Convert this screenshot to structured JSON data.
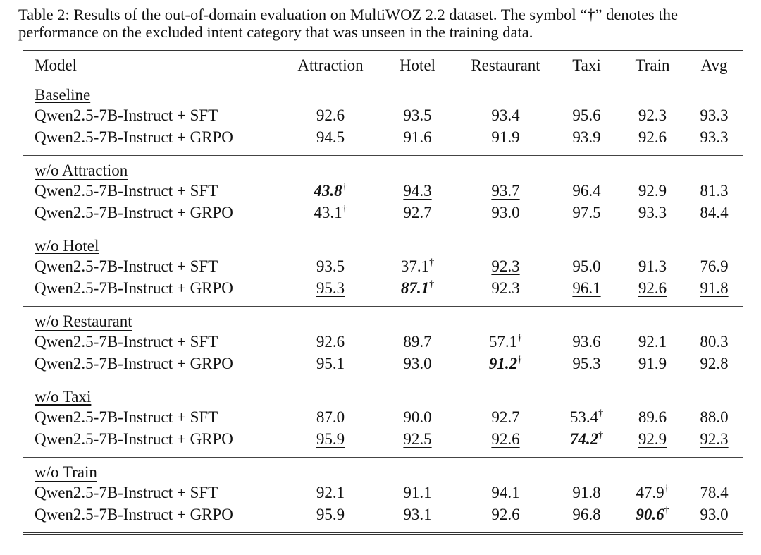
{
  "caption": "Table 2: Results of the out-of-domain evaluation on MultiWOZ 2.2 dataset. The symbol “†” denotes the performance on the excluded intent category that was unseen in the training data.",
  "headers": [
    "Model",
    "Attraction",
    "Hotel",
    "Restaurant",
    "Taxi",
    "Train",
    "Avg"
  ],
  "groups": [
    {
      "label": "Baseline",
      "rows": [
        {
          "model": "Qwen2.5-7B-Instruct + SFT",
          "cells": [
            {
              "v": "92.6"
            },
            {
              "v": "93.5"
            },
            {
              "v": "93.4"
            },
            {
              "v": "95.6"
            },
            {
              "v": "92.3"
            },
            {
              "v": "93.3"
            }
          ]
        },
        {
          "model": "Qwen2.5-7B-Instruct + GRPO",
          "cells": [
            {
              "v": "94.5"
            },
            {
              "v": "91.6"
            },
            {
              "v": "91.9"
            },
            {
              "v": "93.9"
            },
            {
              "v": "92.6"
            },
            {
              "v": "93.3"
            }
          ]
        }
      ]
    },
    {
      "label": "w/o Attraction",
      "rows": [
        {
          "model": "Qwen2.5-7B-Instruct + SFT",
          "cells": [
            {
              "v": "43.8",
              "b": true,
              "d": true
            },
            {
              "v": "94.3",
              "u": true
            },
            {
              "v": "93.7",
              "u": true
            },
            {
              "v": "96.4"
            },
            {
              "v": "92.9"
            },
            {
              "v": "81.3"
            }
          ]
        },
        {
          "model": "Qwen2.5-7B-Instruct + GRPO",
          "cells": [
            {
              "v": "43.1",
              "d": true
            },
            {
              "v": "92.7"
            },
            {
              "v": "93.0"
            },
            {
              "v": "97.5",
              "u": true
            },
            {
              "v": "93.3",
              "u": true
            },
            {
              "v": "84.4",
              "u": true
            }
          ]
        }
      ]
    },
    {
      "label": "w/o Hotel",
      "rows": [
        {
          "model": "Qwen2.5-7B-Instruct + SFT",
          "cells": [
            {
              "v": "93.5"
            },
            {
              "v": "37.1",
              "d": true
            },
            {
              "v": "92.3",
              "u": true
            },
            {
              "v": "95.0"
            },
            {
              "v": "91.3"
            },
            {
              "v": "76.9"
            }
          ]
        },
        {
          "model": "Qwen2.5-7B-Instruct + GRPO",
          "cells": [
            {
              "v": "95.3",
              "u": true
            },
            {
              "v": "87.1",
              "b": true,
              "d": true
            },
            {
              "v": "92.3"
            },
            {
              "v": "96.1",
              "u": true
            },
            {
              "v": "92.6",
              "u": true
            },
            {
              "v": "91.8",
              "u": true
            }
          ]
        }
      ]
    },
    {
      "label": "w/o Restaurant",
      "rows": [
        {
          "model": "Qwen2.5-7B-Instruct + SFT",
          "cells": [
            {
              "v": "92.6"
            },
            {
              "v": "89.7"
            },
            {
              "v": "57.1",
              "d": true
            },
            {
              "v": "93.6"
            },
            {
              "v": "92.1",
              "u": true
            },
            {
              "v": "80.3"
            }
          ]
        },
        {
          "model": "Qwen2.5-7B-Instruct + GRPO",
          "cells": [
            {
              "v": "95.1",
              "u": true
            },
            {
              "v": "93.0",
              "u": true
            },
            {
              "v": "91.2",
              "b": true,
              "d": true
            },
            {
              "v": "95.3",
              "u": true
            },
            {
              "v": "91.9"
            },
            {
              "v": "92.8",
              "u": true
            }
          ]
        }
      ]
    },
    {
      "label": "w/o Taxi",
      "rows": [
        {
          "model": "Qwen2.5-7B-Instruct + SFT",
          "cells": [
            {
              "v": "87.0"
            },
            {
              "v": "90.0"
            },
            {
              "v": "92.7"
            },
            {
              "v": "53.4",
              "d": true
            },
            {
              "v": "89.6"
            },
            {
              "v": "88.0"
            }
          ]
        },
        {
          "model": "Qwen2.5-7B-Instruct + GRPO",
          "cells": [
            {
              "v": "95.9",
              "u": true
            },
            {
              "v": "92.5",
              "u": true
            },
            {
              "v": "92.6",
              "u": true
            },
            {
              "v": "74.2",
              "b": true,
              "d": true
            },
            {
              "v": "92.9",
              "u": true
            },
            {
              "v": "92.3",
              "u": true
            }
          ]
        }
      ]
    },
    {
      "label": "w/o Train",
      "rows": [
        {
          "model": "Qwen2.5-7B-Instruct + SFT",
          "cells": [
            {
              "v": "92.1"
            },
            {
              "v": "91.1"
            },
            {
              "v": "94.1",
              "u": true
            },
            {
              "v": "91.8"
            },
            {
              "v": "47.9",
              "d": true
            },
            {
              "v": "78.4"
            }
          ]
        },
        {
          "model": "Qwen2.5-7B-Instruct + GRPO",
          "cells": [
            {
              "v": "95.9",
              "u": true
            },
            {
              "v": "93.1",
              "u": true
            },
            {
              "v": "92.6"
            },
            {
              "v": "96.8",
              "u": true
            },
            {
              "v": "90.6",
              "b": true,
              "d": true
            },
            {
              "v": "93.0",
              "u": true
            }
          ]
        }
      ]
    }
  ],
  "dagger": "†"
}
